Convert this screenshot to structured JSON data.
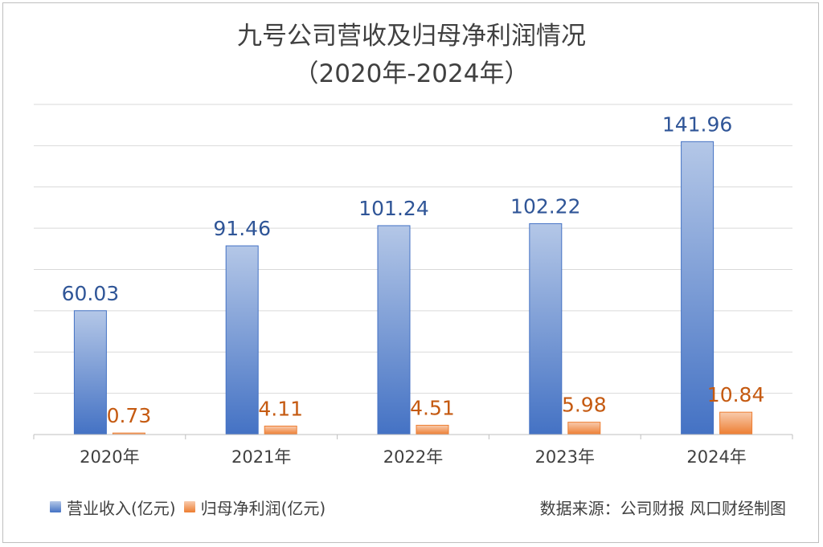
{
  "title": {
    "line1": "九号公司营收及归母净利润情况",
    "line2": "（2020年-2024年）"
  },
  "chart_data": {
    "type": "bar",
    "categories": [
      "2020年",
      "2021年",
      "2022年",
      "2023年",
      "2024年"
    ],
    "series": [
      {
        "name": "营业收入(亿元)",
        "values": [
          60.03,
          91.46,
          101.24,
          102.22,
          141.96
        ],
        "labels": [
          "60.03",
          "91.46",
          "101.24",
          "102.22",
          "141.96"
        ],
        "color": "#4472C4",
        "color_light": "#B4C7E7",
        "label_color": "#2F5597"
      },
      {
        "name": "归母净利润(亿元)",
        "values": [
          0.73,
          4.11,
          4.51,
          5.98,
          10.84
        ],
        "labels": [
          "0.73",
          "4.11",
          "4.51",
          "5.98",
          "10.84"
        ],
        "color": "#ED7D31",
        "color_light": "#F8CBAD",
        "label_color": "#C55A11"
      }
    ],
    "ylim": [
      0,
      160
    ],
    "gridlines": true,
    "y_axis_visible": false,
    "legend_position": "bottom-left"
  },
  "source": "数据来源：公司财报  风口财经制图"
}
